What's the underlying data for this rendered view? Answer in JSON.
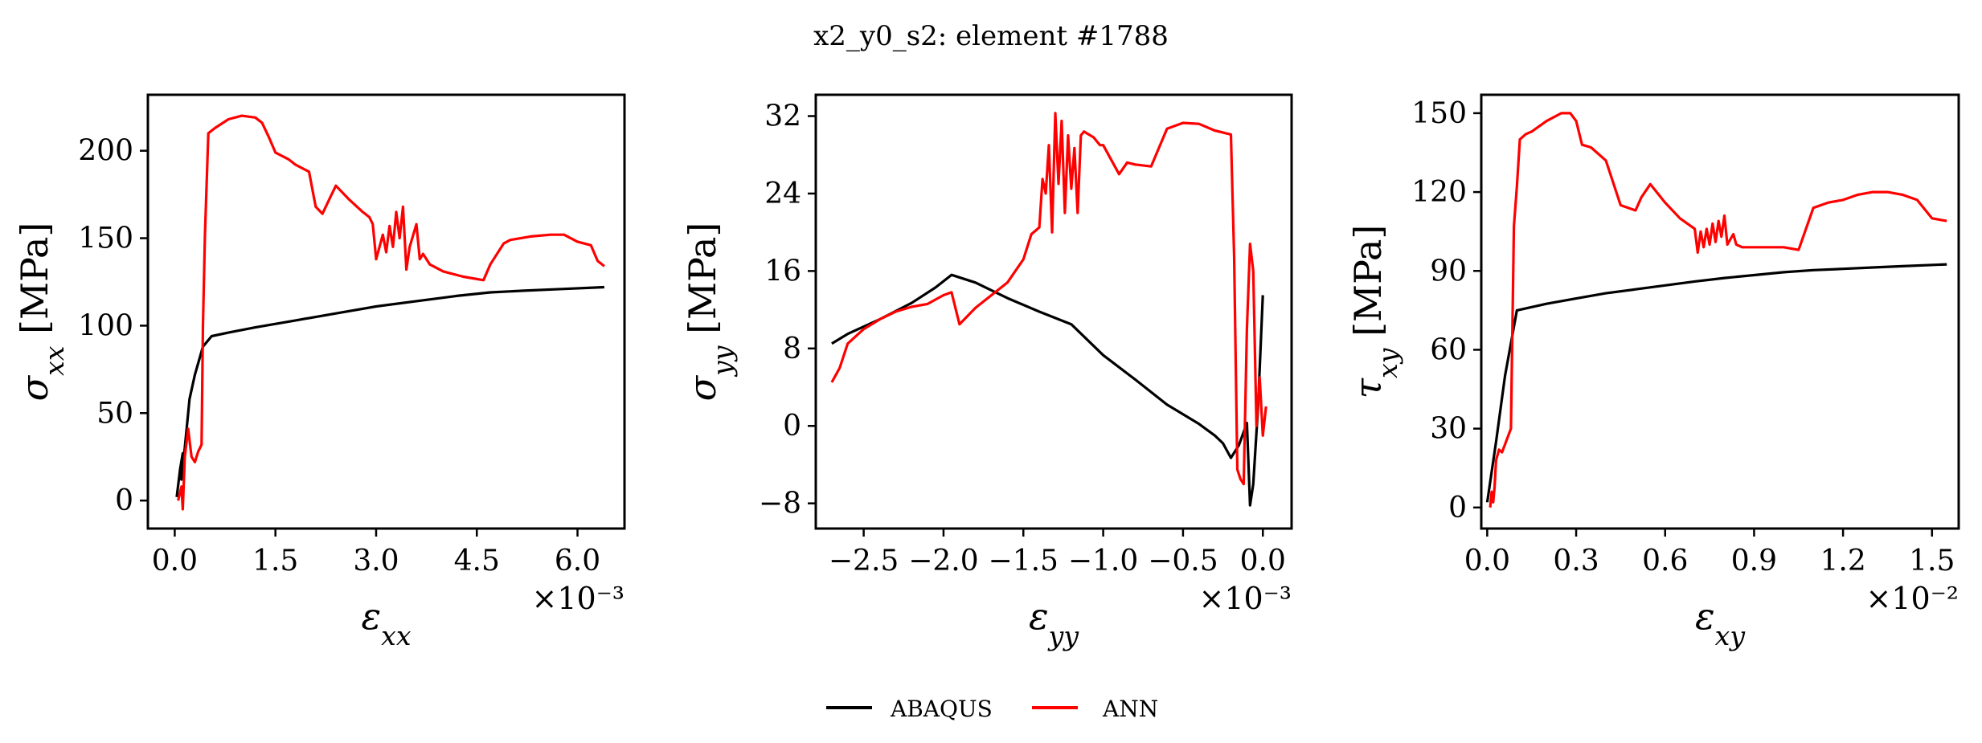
{
  "figure": {
    "title": "x2_y0_s2: element #1788",
    "legend": [
      {
        "label": "ABAQUS",
        "color": "#000000"
      },
      {
        "label": "ANN",
        "color": "#ff0000"
      }
    ]
  },
  "chart_data": [
    {
      "type": "line",
      "title": "",
      "xlabel": "ε_xx",
      "ylabel": "σ_xx [MPa]",
      "x_scale_label": "×10⁻³",
      "xlim": [
        -0.0004,
        0.0067
      ],
      "ylim": [
        -16,
        232
      ],
      "xticks": [
        0.0,
        0.0015,
        0.003,
        0.0045,
        0.006
      ],
      "xtick_labels": [
        "0.0",
        "1.5",
        "3.0",
        "4.5",
        "6.0"
      ],
      "yticks": [
        0,
        50,
        100,
        150,
        200
      ],
      "ytick_labels": [
        "0",
        "50",
        "100",
        "150",
        "200"
      ],
      "grid": false,
      "series": [
        {
          "name": "ABAQUS",
          "color": "#000000",
          "x": [
            3e-05,
            8e-05,
            0.00012,
            0.0001,
            0.00015,
            0.00022,
            0.0003,
            0.00042,
            0.00055,
            0.0008,
            0.0012,
            0.0018,
            0.0024,
            0.003,
            0.0036,
            0.0042,
            0.0047,
            0.0052,
            0.0058,
            0.0064
          ],
          "y": [
            2,
            18,
            27,
            12,
            30,
            58,
            72,
            88,
            94,
            96,
            99,
            103,
            107,
            111,
            114,
            117,
            119,
            120,
            121,
            122
          ]
        },
        {
          "name": "ANN",
          "color": "#ff0000",
          "x": [
            5e-05,
            0.0001,
            0.00012,
            0.00015,
            0.0002,
            0.00025,
            0.0003,
            0.00035,
            0.0004,
            0.00042,
            0.00045,
            0.0005,
            0.0006,
            0.0008,
            0.001,
            0.0012,
            0.0013,
            0.0014,
            0.0015,
            0.0016,
            0.0017,
            0.0018,
            0.002,
            0.0021,
            0.0022,
            0.0023,
            0.0024,
            0.0026,
            0.0028,
            0.0029,
            0.00295,
            0.003,
            0.0031,
            0.00315,
            0.0032,
            0.00325,
            0.0033,
            0.00335,
            0.0034,
            0.00345,
            0.0035,
            0.0036,
            0.00365,
            0.0037,
            0.0038,
            0.004,
            0.0043,
            0.0046,
            0.0047,
            0.0049,
            0.005,
            0.0053,
            0.0056,
            0.0058,
            0.006,
            0.0062,
            0.0063,
            0.0064
          ],
          "y": [
            0,
            8,
            -5,
            25,
            41,
            25,
            22,
            28,
            32,
            100,
            152,
            210,
            213,
            218,
            220,
            219,
            216,
            208,
            199,
            197,
            195,
            192,
            188,
            168,
            164,
            172,
            180,
            172,
            165,
            162,
            158,
            138,
            152,
            142,
            157,
            145,
            165,
            150,
            168,
            132,
            145,
            158,
            138,
            141,
            135,
            131,
            128,
            126,
            135,
            147,
            149,
            151,
            152,
            152,
            148,
            146,
            137,
            134
          ]
        }
      ]
    },
    {
      "type": "line",
      "title": "",
      "xlabel": "ε_yy",
      "ylabel": "σ_yy [MPa]",
      "x_scale_label": "×10⁻³",
      "xlim": [
        -0.0028,
        0.00018
      ],
      "ylim": [
        -10.6,
        34.2
      ],
      "xticks": [
        -0.0025,
        -0.002,
        -0.0015,
        -0.001,
        -0.0005,
        0.0
      ],
      "xtick_labels": [
        "−2.5",
        "−2.0",
        "−1.5",
        "−1.0",
        "−0.5",
        "0.0"
      ],
      "yticks": [
        -8,
        0,
        8,
        16,
        24,
        32
      ],
      "ytick_labels": [
        "−8",
        "0",
        "8",
        "16",
        "24",
        "32"
      ],
      "grid": false,
      "series": [
        {
          "name": "ABAQUS",
          "color": "#000000",
          "x": [
            -0.0027,
            -0.0026,
            -0.0024,
            -0.0022,
            -0.00205,
            -0.00195,
            -0.0018,
            -0.0016,
            -0.0014,
            -0.0012,
            -0.001,
            -0.0008,
            -0.0006,
            -0.0004,
            -0.0003,
            -0.00025,
            -0.0002,
            -0.00015,
            -0.0001,
            -8e-05,
            -6e-05,
            -3e-05,
            0.0
          ],
          "y": [
            8.5,
            9.5,
            11,
            12.7,
            14.3,
            15.6,
            14.8,
            13.2,
            11.8,
            10.5,
            7.3,
            4.8,
            2.2,
            0.2,
            -1.0,
            -1.8,
            -3.3,
            -2.0,
            0.3,
            -8.2,
            -6.0,
            2.0,
            13.5
          ]
        },
        {
          "name": "ANN",
          "color": "#ff0000",
          "x": [
            -0.0027,
            -0.00265,
            -0.0026,
            -0.0025,
            -0.0024,
            -0.0023,
            -0.0022,
            -0.0021,
            -0.002,
            -0.00195,
            -0.0019,
            -0.0018,
            -0.0016,
            -0.0015,
            -0.00145,
            -0.0014,
            -0.00138,
            -0.00136,
            -0.00134,
            -0.00132,
            -0.0013,
            -0.00128,
            -0.00126,
            -0.00124,
            -0.00122,
            -0.0012,
            -0.00118,
            -0.00116,
            -0.00114,
            -0.00112,
            -0.0011,
            -0.00108,
            -0.00106,
            -0.00104,
            -0.00102,
            -0.001,
            -0.00095,
            -0.0009,
            -0.00085,
            -0.0008,
            -0.0007,
            -0.0006,
            -0.0005,
            -0.0004,
            -0.0003,
            -0.0002,
            -0.00018,
            -0.00016,
            -0.00014,
            -0.00012,
            -0.0001,
            -8e-05,
            -6e-05,
            -4e-05,
            -2e-05,
            0.0,
            2e-05
          ],
          "y": [
            4.5,
            6,
            8.5,
            10,
            11,
            11.8,
            12.3,
            12.6,
            13.5,
            13.8,
            10.5,
            12.2,
            14.8,
            17.2,
            19.8,
            20.5,
            25.5,
            24,
            29,
            20,
            32.3,
            25,
            31.5,
            22,
            30,
            24.5,
            28.7,
            22,
            30,
            30.4,
            30.2,
            30,
            29.8,
            29.4,
            29,
            29,
            27.5,
            26,
            27.2,
            27,
            26.8,
            30.7,
            31.3,
            31.2,
            30.5,
            30.1,
            17.5,
            -4.5,
            -5.5,
            -6,
            10,
            18.8,
            16,
            0,
            5,
            -1,
            2
          ]
        }
      ]
    },
    {
      "type": "line",
      "title": "",
      "xlabel": "ε_xy",
      "ylabel": "τ_xy [MPa]",
      "x_scale_label": "×10⁻²",
      "xlim": [
        -0.0002,
        0.0159
      ],
      "ylim": [
        -8,
        157
      ],
      "xticks": [
        0.0,
        0.003,
        0.006,
        0.009,
        0.012,
        0.015
      ],
      "xtick_labels": [
        "0.0",
        "0.3",
        "0.6",
        "0.9",
        "1.2",
        "1.5"
      ],
      "yticks": [
        0,
        30,
        60,
        90,
        120,
        150
      ],
      "ytick_labels": [
        "0",
        "30",
        "60",
        "90",
        "120",
        "150"
      ],
      "grid": false,
      "series": [
        {
          "name": "ABAQUS",
          "color": "#000000",
          "x": [
            0.0,
            0.0003,
            0.0006,
            0.001,
            0.002,
            0.003,
            0.004,
            0.005,
            0.006,
            0.007,
            0.008,
            0.009,
            0.01,
            0.011,
            0.012,
            0.013,
            0.014,
            0.0155
          ],
          "y": [
            2,
            25,
            50,
            75,
            77.5,
            79.5,
            81.5,
            83,
            84.5,
            86,
            87.3,
            88.4,
            89.5,
            90.3,
            90.8,
            91.3,
            91.8,
            92.5
          ]
        },
        {
          "name": "ANN",
          "color": "#ff0000",
          "x": [
            0.0001,
            0.00015,
            0.0002,
            0.00025,
            0.0003,
            0.0004,
            0.0005,
            0.0006,
            0.0008,
            0.0009,
            0.001,
            0.0011,
            0.0013,
            0.0015,
            0.002,
            0.0025,
            0.0028,
            0.003,
            0.0032,
            0.0035,
            0.004,
            0.0045,
            0.005,
            0.0052,
            0.0055,
            0.006,
            0.0065,
            0.007,
            0.0071,
            0.0072,
            0.0073,
            0.0074,
            0.0075,
            0.0076,
            0.0077,
            0.0078,
            0.0079,
            0.008,
            0.0081,
            0.0082,
            0.0083,
            0.0084,
            0.0086,
            0.0088,
            0.009,
            0.0095,
            0.01,
            0.0105,
            0.011,
            0.0115,
            0.012,
            0.0125,
            0.013,
            0.0135,
            0.014,
            0.0145,
            0.015,
            0.0155
          ],
          "y": [
            0,
            6,
            2,
            8,
            18,
            22,
            21,
            24,
            30,
            107,
            122,
            140,
            142,
            143,
            147,
            150,
            150,
            147,
            138,
            137,
            132,
            115,
            113,
            118,
            123,
            116,
            110,
            106,
            97,
            105,
            99,
            106,
            100,
            108,
            101,
            109,
            103,
            111,
            100,
            102,
            104,
            100,
            99,
            99,
            99,
            99,
            99,
            98,
            114,
            116,
            117,
            119,
            120,
            120,
            119,
            117,
            110,
            109
          ]
        }
      ]
    }
  ]
}
